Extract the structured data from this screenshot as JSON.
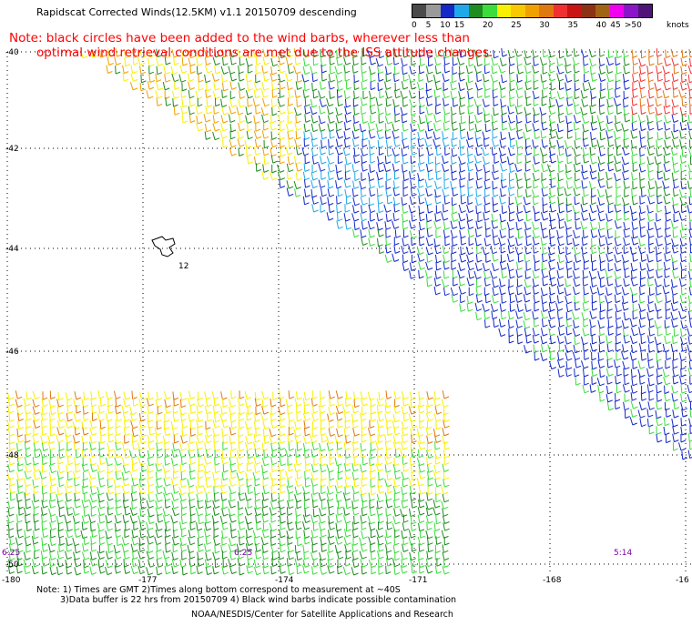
{
  "title": "Rapidscat Corrected Winds(12.5KM) v1.1 20150709 descending",
  "note": {
    "line1": "Note: black circles have been added to the wind barbs, wherever less than",
    "line2": "optimal wind retrieval conditions are met due to the ISS attitude changes."
  },
  "legend": {
    "units": "knots",
    "bins": [
      {
        "label": "0",
        "color": "#4a4a4a"
      },
      {
        "label": "5",
        "color": "#9a9a9a"
      },
      {
        "label": "10",
        "color": "#1428c8"
      },
      {
        "label": "15",
        "color": "#20a8e8"
      },
      {
        "label": "",
        "color": "#1e8c1e"
      },
      {
        "label": "20",
        "color": "#3cdc3c"
      },
      {
        "label": "",
        "color": "#f8f000"
      },
      {
        "label": "25",
        "color": "#f8c800"
      },
      {
        "label": "",
        "color": "#f0a000"
      },
      {
        "label": "30",
        "color": "#e07810"
      },
      {
        "label": "",
        "color": "#f03030"
      },
      {
        "label": "35",
        "color": "#c81414"
      },
      {
        "label": "",
        "color": "#8c3214"
      },
      {
        "label": "40",
        "color": "#a06414"
      },
      {
        "label": "45",
        "color": "#f000f0"
      },
      {
        "label": ">50",
        "color": "#8c14c8"
      },
      {
        "label": "",
        "color": "#501478"
      }
    ]
  },
  "axes": {
    "y_ticks": [
      "-40",
      "-42",
      "-44",
      "-46",
      "-48",
      "-50"
    ],
    "x_ticks": [
      "-180",
      "-177",
      "-174",
      "-171",
      "-168",
      "-16"
    ]
  },
  "time_labels": [
    "6:25",
    "6:25",
    "5:14"
  ],
  "island_label": "12",
  "footnote": {
    "line1": "Note: 1) Times are GMT 2)Times along bottom correspond to measurement at ~40S",
    "line2": "3)Data buffer is 22 hrs from 20150709 4) Black wind barbs indicate possible contamination",
    "credit": "NOAA/NESDIS/Center for Satellite Applications and Research"
  }
}
